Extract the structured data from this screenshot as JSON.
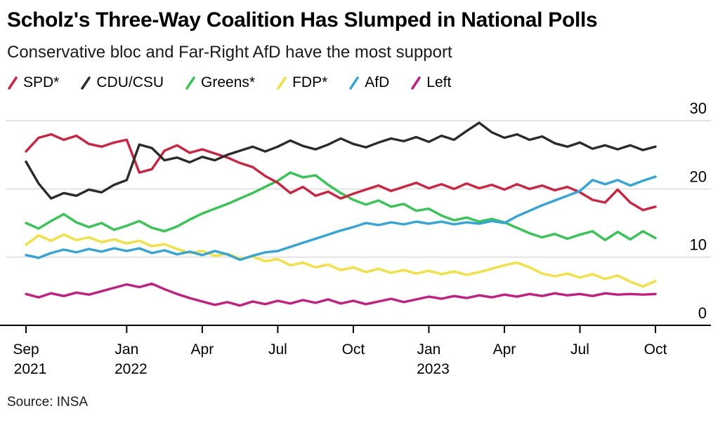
{
  "header": {
    "title": "Scholz's Three-Way Coalition Has Slumped in National Polls",
    "subtitle": "Conservative bloc and Far-Right AfD have the most support"
  },
  "source": {
    "text": "Source: INSA"
  },
  "chart_data": {
    "type": "line",
    "title": "Scholz's Three-Way Coalition Has Slumped in National Polls",
    "subtitle": "Conservative bloc and Far-Right AfD have the most support",
    "legend_position": "top",
    "grid": "horizontal",
    "x_axis": {
      "start": "Sep 2021",
      "end": "Oct 2023",
      "x_step_months": 0.5,
      "ticks": [
        {
          "m": 0,
          "label": "Sep",
          "year": "2021"
        },
        {
          "m": 4,
          "label": "Jan",
          "year": "2022"
        },
        {
          "m": 7,
          "label": "Apr"
        },
        {
          "m": 10,
          "label": "Jul"
        },
        {
          "m": 13,
          "label": "Oct"
        },
        {
          "m": 16,
          "label": "Jan",
          "year": "2023"
        },
        {
          "m": 19,
          "label": "Apr"
        },
        {
          "m": 22,
          "label": "Jul"
        },
        {
          "m": 25,
          "label": "Oct"
        }
      ]
    },
    "y_axis": {
      "min": 0,
      "max": 30,
      "unit": "percent",
      "side": "right",
      "tick_values": [
        30,
        20,
        10,
        0
      ],
      "gridline_values": [
        30,
        20,
        10
      ]
    },
    "style": {
      "gridline_color": "#dcdcdc",
      "axis_color": "#000000",
      "text_color": "#000000"
    },
    "series": [
      {
        "name": "SPD*",
        "color": "#d4203d",
        "values": [
          25.5,
          27.5,
          28.0,
          27.2,
          27.8,
          26.6,
          26.2,
          26.8,
          27.2,
          22.4,
          22.9,
          25.6,
          26.4,
          25.3,
          25.8,
          25.2,
          24.6,
          23.8,
          23.2,
          21.9,
          20.9,
          19.4,
          20.3,
          19.0,
          19.6,
          18.6,
          19.3,
          19.9,
          20.5,
          19.7,
          20.3,
          20.9,
          20.1,
          20.7,
          20.0,
          20.8,
          20.1,
          20.6,
          19.9,
          20.7,
          20.0,
          20.5,
          19.8,
          20.3,
          19.5,
          18.4,
          18.0,
          19.9,
          18.0,
          16.9,
          17.4
        ]
      },
      {
        "name": "CDU/CSU",
        "color": "#2b2b2b",
        "values": [
          24.0,
          20.8,
          18.6,
          19.4,
          19.0,
          19.9,
          19.5,
          20.6,
          21.3,
          26.5,
          26.0,
          24.2,
          24.6,
          23.9,
          24.7,
          24.2,
          25.0,
          25.6,
          26.2,
          25.5,
          26.2,
          27.1,
          26.3,
          25.8,
          26.5,
          27.4,
          26.6,
          26.1,
          26.8,
          27.4,
          27.0,
          27.6,
          26.9,
          27.8,
          27.2,
          28.5,
          29.7,
          28.3,
          27.5,
          28.0,
          27.2,
          27.7,
          26.7,
          26.2,
          26.8,
          25.9,
          26.4,
          25.8,
          26.4,
          25.7,
          26.2
        ]
      },
      {
        "name": "Greens*",
        "color": "#32c850",
        "values": [
          15.0,
          14.2,
          15.3,
          16.3,
          15.1,
          14.4,
          15.0,
          14.0,
          14.6,
          15.3,
          14.3,
          13.8,
          14.5,
          15.5,
          16.4,
          17.1,
          17.8,
          18.6,
          19.4,
          20.3,
          21.2,
          22.4,
          21.7,
          22.0,
          20.6,
          19.4,
          18.4,
          17.7,
          18.3,
          17.4,
          17.8,
          16.8,
          17.1,
          16.1,
          15.4,
          15.8,
          15.2,
          15.6,
          15.1,
          14.3,
          13.5,
          12.9,
          13.4,
          12.7,
          13.3,
          13.8,
          12.5,
          13.7,
          12.6,
          13.8,
          12.8
        ]
      },
      {
        "name": "FDP*",
        "color": "#f3e13b",
        "values": [
          11.8,
          13.2,
          12.4,
          13.3,
          12.5,
          12.9,
          12.2,
          12.6,
          12.0,
          12.4,
          11.6,
          11.9,
          11.2,
          10.6,
          10.9,
          10.2,
          10.5,
          9.8,
          10.1,
          9.4,
          9.7,
          8.8,
          9.2,
          8.5,
          8.9,
          8.1,
          8.5,
          7.8,
          8.3,
          7.7,
          8.1,
          7.6,
          8.0,
          7.5,
          7.9,
          7.4,
          7.8,
          8.3,
          8.8,
          9.2,
          8.5,
          7.6,
          7.2,
          7.6,
          7.0,
          7.5,
          6.8,
          7.3,
          6.4,
          5.7,
          6.5
        ]
      },
      {
        "name": "AfD",
        "color": "#2fa5dd",
        "values": [
          10.3,
          9.9,
          10.6,
          11.1,
          10.7,
          11.2,
          10.8,
          11.3,
          10.9,
          11.3,
          10.6,
          11.0,
          10.4,
          10.8,
          10.3,
          10.9,
          10.4,
          9.6,
          10.2,
          10.7,
          10.9,
          11.5,
          12.1,
          12.7,
          13.3,
          13.9,
          14.4,
          15.0,
          14.7,
          15.1,
          14.8,
          15.2,
          14.9,
          15.2,
          14.8,
          15.1,
          14.9,
          15.3,
          15.0,
          16.0,
          16.8,
          17.6,
          18.3,
          19.0,
          19.7,
          21.3,
          20.7,
          21.3,
          20.5,
          21.2,
          21.8
        ]
      },
      {
        "name": "Left",
        "color": "#ca1a82",
        "values": [
          4.6,
          4.1,
          4.7,
          4.3,
          4.8,
          4.5,
          5.0,
          5.5,
          6.0,
          5.6,
          6.1,
          5.3,
          4.6,
          4.0,
          3.5,
          3.0,
          3.4,
          2.9,
          3.5,
          3.1,
          3.6,
          3.2,
          3.7,
          3.3,
          3.8,
          3.2,
          3.6,
          3.1,
          3.5,
          3.9,
          3.4,
          3.8,
          4.2,
          3.9,
          4.3,
          4.0,
          4.4,
          4.1,
          4.5,
          4.2,
          4.6,
          4.3,
          4.7,
          4.4,
          4.6,
          4.3,
          4.7,
          4.5,
          4.6,
          4.5,
          4.6
        ]
      }
    ]
  }
}
